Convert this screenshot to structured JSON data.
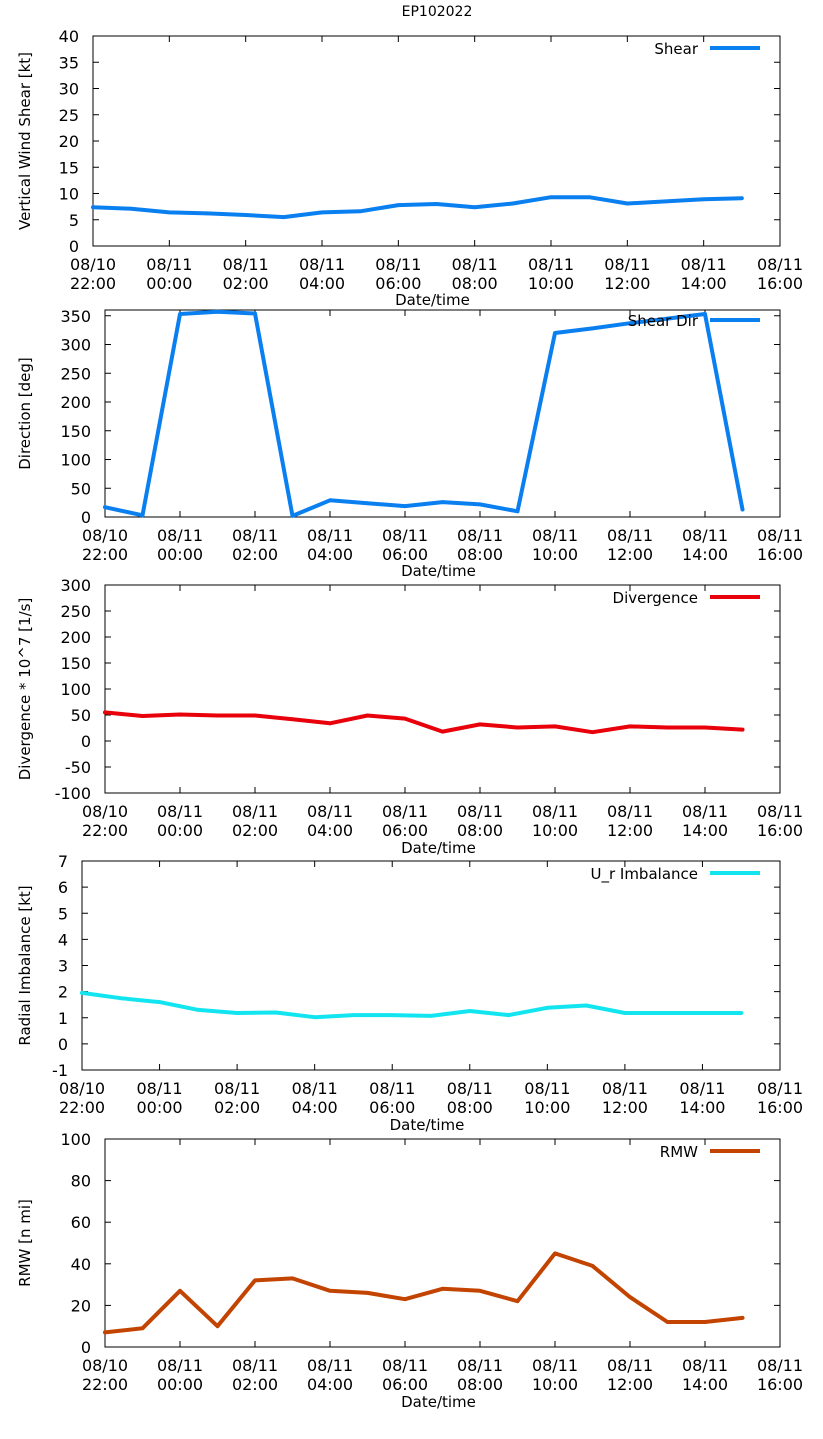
{
  "title": "EP102022",
  "x_ticks": [
    {
      "date": "08/10",
      "time": "22:00"
    },
    {
      "date": "08/11",
      "time": "00:00"
    },
    {
      "date": "08/11",
      "time": "02:00"
    },
    {
      "date": "08/11",
      "time": "04:00"
    },
    {
      "date": "08/11",
      "time": "06:00"
    },
    {
      "date": "08/11",
      "time": "08:00"
    },
    {
      "date": "08/11",
      "time": "10:00"
    },
    {
      "date": "08/11",
      "time": "12:00"
    },
    {
      "date": "08/11",
      "time": "14:00"
    },
    {
      "date": "08/11",
      "time": "16:00"
    }
  ],
  "chart_data": [
    {
      "type": "line",
      "name": "shear",
      "xlabel": "Date/time",
      "ylabel": "Vertical Wind Shear [kt]",
      "xlim": [
        0,
        18
      ],
      "ylim": [
        0,
        40
      ],
      "yticks": [
        0,
        5,
        10,
        15,
        20,
        25,
        30,
        35,
        40
      ],
      "series": [
        {
          "name": "Shear",
          "color": "#0a7ff0",
          "x": [
            0,
            1,
            2,
            3,
            4,
            5,
            6,
            7,
            8,
            9,
            10,
            11,
            12,
            13,
            14,
            15,
            16,
            17
          ],
          "values": [
            7.4,
            7.1,
            6.4,
            6.2,
            5.9,
            5.5,
            6.4,
            6.6,
            7.8,
            8.0,
            7.4,
            8.1,
            9.3,
            9.3,
            8.1,
            8.5,
            8.9,
            9.1
          ]
        }
      ]
    },
    {
      "type": "line",
      "name": "shear-dir",
      "xlabel": "Date/time",
      "ylabel": "Direction [deg]",
      "xlim": [
        0,
        18
      ],
      "ylim": [
        0,
        360
      ],
      "yticks": [
        0,
        50,
        100,
        150,
        200,
        250,
        300,
        350
      ],
      "series": [
        {
          "name": "Shear Dir",
          "color": "#0a7ff0",
          "x": [
            0,
            1,
            2,
            3,
            4,
            5,
            6,
            7,
            8,
            9,
            10,
            11,
            12,
            13,
            14,
            15,
            16,
            17
          ],
          "values": [
            17,
            3,
            353,
            357,
            354,
            2,
            29,
            24,
            19,
            26,
            22,
            10,
            320,
            328,
            337,
            345,
            353,
            13
          ]
        }
      ]
    },
    {
      "type": "line",
      "name": "divergence",
      "xlabel": "Date/time",
      "ylabel": "Divergence * 10^7 [1/s]",
      "xlim": [
        0,
        18
      ],
      "ylim": [
        -100,
        300
      ],
      "yticks": [
        -100,
        -50,
        0,
        50,
        100,
        150,
        200,
        250,
        300
      ],
      "series": [
        {
          "name": "Divergence",
          "color": "#e8000a",
          "x": [
            0,
            1,
            2,
            3,
            4,
            5,
            6,
            7,
            8,
            9,
            10,
            11,
            12,
            13,
            14,
            15,
            16,
            17
          ],
          "values": [
            55,
            48,
            51,
            49,
            49,
            42,
            34,
            49,
            43,
            18,
            32,
            26,
            28,
            17,
            28,
            26,
            26,
            22
          ]
        }
      ]
    },
    {
      "type": "line",
      "name": "radial-imbalance",
      "xlabel": "Date/time",
      "ylabel": "Radial Imbalance [kt]",
      "xlim": [
        0,
        18
      ],
      "ylim": [
        -1,
        7
      ],
      "yticks": [
        -1,
        0,
        1,
        2,
        3,
        4,
        5,
        6,
        7
      ],
      "series": [
        {
          "name": "U_r Imbalance",
          "color": "#13e5f0",
          "x": [
            0,
            1,
            2,
            3,
            4,
            5,
            6,
            7,
            8,
            9,
            10,
            11,
            12,
            13,
            14,
            15,
            16,
            17
          ],
          "values": [
            1.95,
            1.75,
            1.6,
            1.3,
            1.18,
            1.2,
            1.02,
            1.1,
            1.1,
            1.07,
            1.26,
            1.1,
            1.38,
            1.47,
            1.18,
            1.18,
            1.18,
            1.18
          ]
        }
      ]
    },
    {
      "type": "line",
      "name": "rmw",
      "xlabel": "Date/time",
      "ylabel": "RMW [n mi]",
      "xlim": [
        0,
        18
      ],
      "ylim": [
        0,
        100
      ],
      "yticks": [
        0,
        20,
        40,
        60,
        80,
        100
      ],
      "series": [
        {
          "name": "RMW",
          "color": "#c24400",
          "x": [
            0,
            1,
            2,
            3,
            4,
            5,
            6,
            7,
            8,
            9,
            10,
            11,
            12,
            13,
            14,
            15,
            16,
            17
          ],
          "values": [
            7,
            9,
            27,
            10,
            32,
            33,
            27,
            26,
            23,
            28,
            27,
            22,
            45,
            39,
            24,
            12,
            12,
            14
          ]
        }
      ]
    }
  ]
}
